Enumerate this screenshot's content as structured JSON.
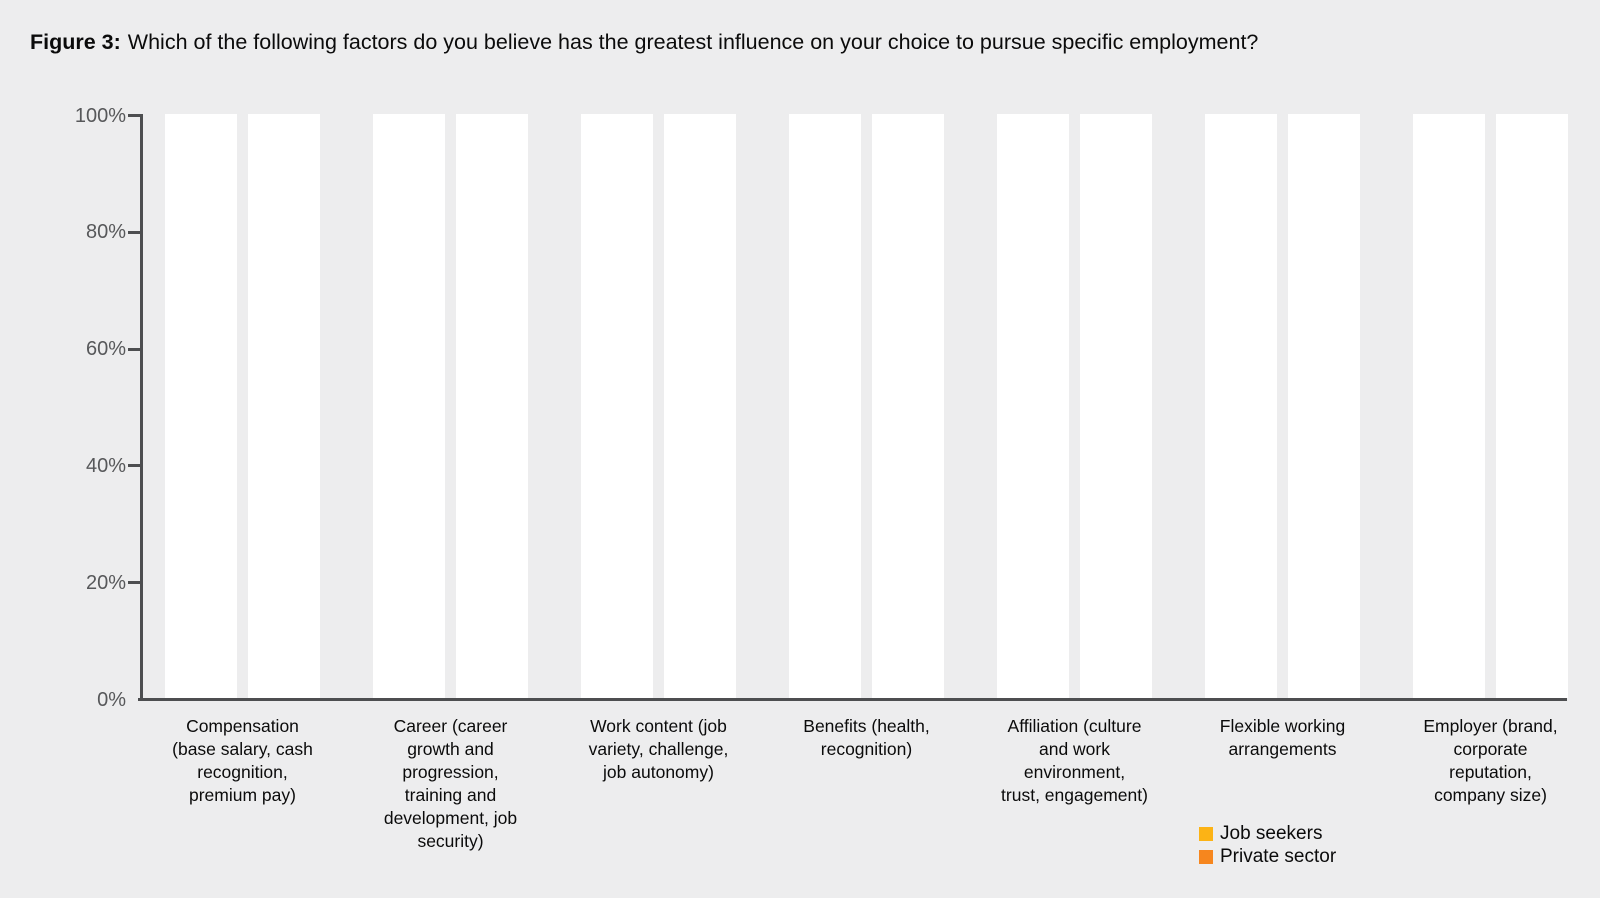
{
  "figure": {
    "title_prefix": "Figure 3:",
    "title_text": "Which of the following factors do you believe has the greatest influence on your choice to pursue specific employment?"
  },
  "colors": {
    "background": "#EDEDEE",
    "axis": "#4D4E50",
    "tick_label": "#57585A",
    "text": "#0B0B0B",
    "bar_fill": "#FFFFFF",
    "legend_job_seekers": "#FCB315",
    "legend_private_sector": "#F6861E"
  },
  "chart_data": {
    "type": "bar",
    "title": "Which of the following factors do you believe has the greatest influence on your choice to pursue specific employment?",
    "categories": [
      "Compensation (base salary, cash recognition, premium pay)",
      "Career (career growth and progression, training and development, job security)",
      "Work content (job variety, challenge, job autonomy)",
      "Benefits (health, recognition)",
      "Affiliation (culture and work environment, trust, engagement)",
      "Flexible working arrangements",
      "Employer (brand, corporate reputation, company size)"
    ],
    "categories_wrapped": [
      "Compensation\n(base salary, cash\nrecognition,\npremium pay)",
      "Career (career\ngrowth and\nprogression,\ntraining and\ndevelopment, job\nsecurity)",
      "Work content (job\nvariety, challenge,\njob autonomy)",
      "Benefits (health,\nrecognition)",
      "Affiliation (culture\nand work\nenvironment,\ntrust, engagement)",
      "Flexible working\narrangements",
      "Employer (brand,\ncorporate\nreputation,\ncompany size)"
    ],
    "series": [
      {
        "name": "Job seekers",
        "color": "#FCB315",
        "values": [
          100,
          100,
          100,
          100,
          100,
          100,
          100
        ]
      },
      {
        "name": "Private sector",
        "color": "#F6861E",
        "values": [
          100,
          100,
          100,
          100,
          100,
          100,
          100
        ]
      }
    ],
    "bar_render_fill": "#FFFFFF",
    "xlabel": "",
    "ylabel": "",
    "ylim": [
      0,
      100
    ],
    "yticks": [
      "0%",
      "20%",
      "40%",
      "60%",
      "80%",
      "100%"
    ],
    "grid": false,
    "legend_position": "bottom-right"
  }
}
